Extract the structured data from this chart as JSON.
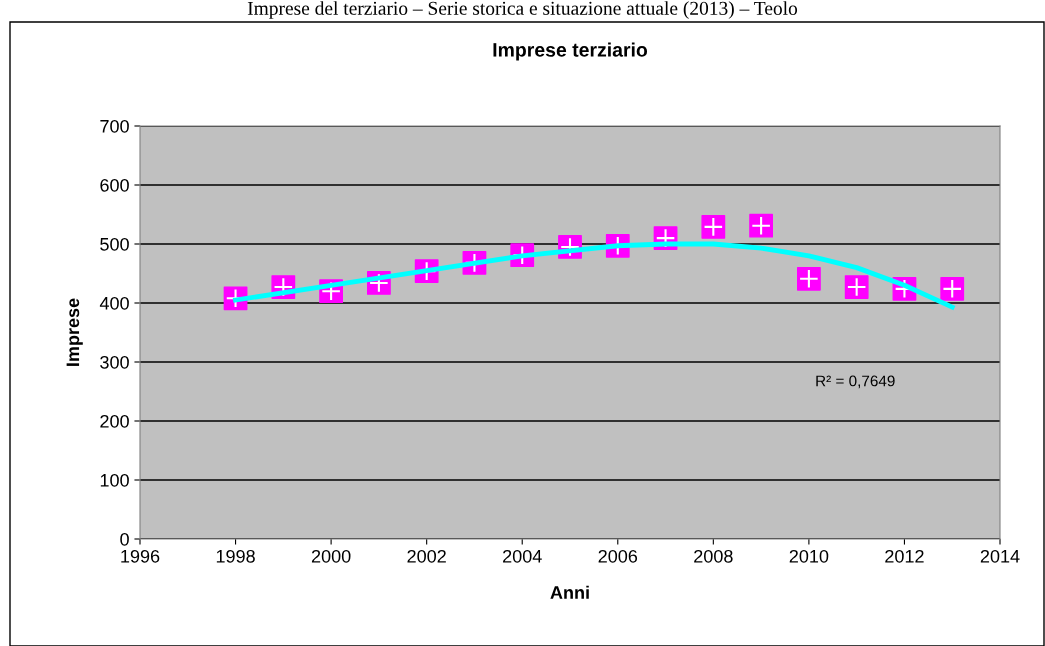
{
  "chart_data": {
    "type": "scatter",
    "title": "Imprese terziario",
    "xlabel": "Anni",
    "ylabel": "Imprese",
    "annotations": [
      "Imprese del terziario – Serie storica e situazione attuale (2013) – Teolo",
      "R² = 0,7649"
    ],
    "x": [
      1998,
      1999,
      2000,
      2001,
      2002,
      2003,
      2004,
      2005,
      2006,
      2007,
      2008,
      2009,
      2010,
      2011,
      2012,
      2013
    ],
    "series": [
      {
        "color": "#ff00ff",
        "marker": "square",
        "values": [
          408,
          427,
          420,
          434,
          454,
          468,
          481,
          495,
          497,
          510,
          529,
          531,
          441,
          427,
          424,
          424
        ]
      },
      {
        "type": "line",
        "color": "#00ffff",
        "marker": "none",
        "x": [
          1998,
          2000,
          2002,
          2004,
          2006,
          2007,
          2008,
          2009,
          2010,
          2011,
          2012,
          2013
        ],
        "values": [
          405,
          430,
          455,
          480,
          497,
          500,
          500,
          493,
          480,
          460,
          430,
          393
        ]
      }
    ],
    "xlim": [
      1996,
      2014
    ],
    "xticks": [
      1996,
      1998,
      2000,
      2002,
      2004,
      2006,
      2008,
      2010,
      2012,
      2014
    ],
    "ylim": [
      0,
      700
    ],
    "yticks": [
      0,
      100,
      200,
      300,
      400,
      500,
      600,
      700
    ],
    "grid": "y"
  }
}
